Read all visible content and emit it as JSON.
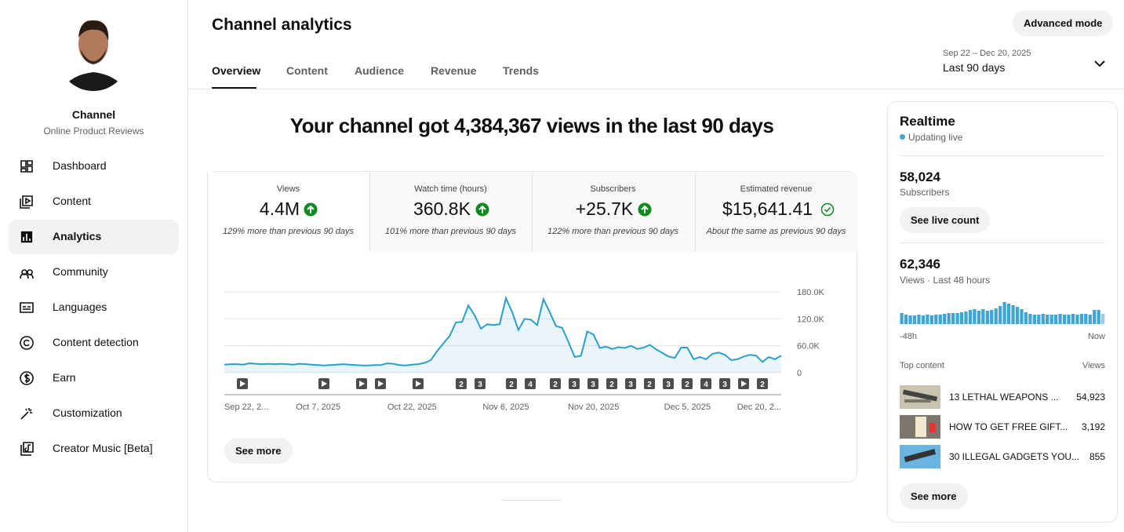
{
  "sidebar": {
    "channel_name": "Channel",
    "channel_subtitle": "Online Product Reviews",
    "nav": [
      "Dashboard",
      "Content",
      "Analytics",
      "Community",
      "Languages",
      "Content detection",
      "Earn",
      "Customization",
      "Creator Music [Beta]"
    ]
  },
  "header": {
    "title": "Channel analytics",
    "tabs": [
      "Overview",
      "Content",
      "Audience",
      "Revenue",
      "Trends"
    ],
    "advanced_button": "Advanced mode",
    "date_range": "Sep 22 – Dec 20, 2025",
    "period": "Last 90 days"
  },
  "headline": "Your channel got 4,384,367 views in the last 90 days",
  "metrics": [
    {
      "label": "Views",
      "value": "4.4M",
      "note": "129% more than previous 90 days"
    },
    {
      "label": "Watch time (hours)",
      "value": "360.8K",
      "note": "101% more than previous 90 days"
    },
    {
      "label": "Subscribers",
      "value": "+25.7K",
      "note": "122% more than previous 90 days"
    },
    {
      "label": "Estimated revenue",
      "value": "$15,641.41",
      "note": "About the same as previous 90 days"
    }
  ],
  "main_chart": {
    "type": "line",
    "color": "#2aa0c9",
    "grid": true,
    "ylim": [
      0,
      180000
    ],
    "yticks": [
      0,
      {
        "value": 60000,
        "label": "60.0K"
      },
      {
        "value": 120000,
        "label": "120.0K"
      },
      {
        "value": 180000,
        "label": "180.0K"
      }
    ],
    "categories": [
      "Sep 22, 2...",
      null,
      null,
      null,
      null,
      null,
      null,
      null,
      null,
      null,
      null,
      null,
      null,
      null,
      null,
      "Oct 7, 2025",
      null,
      null,
      null,
      null,
      null,
      null,
      null,
      null,
      null,
      null,
      null,
      null,
      null,
      null,
      "Oct 22, 2025",
      null,
      null,
      null,
      null,
      null,
      null,
      null,
      null,
      null,
      null,
      null,
      null,
      null,
      null,
      "Nov 6, 2025",
      null,
      null,
      null,
      null,
      null,
      null,
      null,
      null,
      null,
      null,
      null,
      null,
      null,
      "Nov 20, 2025",
      null,
      null,
      null,
      null,
      null,
      null,
      null,
      null,
      null,
      null,
      null,
      null,
      null,
      null,
      "Dec 5, 2025",
      null,
      null,
      null,
      null,
      null,
      null,
      null,
      null,
      null,
      null,
      null,
      null,
      null,
      null,
      "Dec 20, 2..."
    ],
    "values": [
      18000,
      19000,
      19000,
      18000,
      21000,
      20000,
      19000,
      20000,
      19000,
      20000,
      19000,
      18000,
      20000,
      19000,
      18000,
      17000,
      16000,
      17000,
      18000,
      19000,
      18000,
      17000,
      16000,
      16000,
      17000,
      17000,
      21000,
      20000,
      17000,
      16000,
      18000,
      19000,
      22000,
      28000,
      48000,
      65000,
      82000,
      112000,
      113000,
      150000,
      128000,
      98000,
      108000,
      106000,
      108000,
      166000,
      135000,
      95000,
      120000,
      118000,
      106000,
      164000,
      135000,
      104000,
      100000,
      68000,
      35000,
      38000,
      92000,
      85000,
      55000,
      58000,
      53000,
      57000,
      55000,
      60000,
      53000,
      56000,
      62000,
      52000,
      44000,
      36000,
      33000,
      56000,
      56000,
      30000,
      35000,
      30000,
      42000,
      45000,
      40000,
      28000,
      30000,
      36000,
      40000,
      38000,
      24000,
      35000,
      30000,
      38000
    ],
    "markers": [
      null,
      null,
      null,
      null,
      null,
      "2",
      "3",
      "2",
      "4",
      "2",
      "3",
      "3",
      "2",
      "3",
      "2",
      "3",
      "2",
      "4",
      "3",
      null,
      "2"
    ]
  },
  "see_more": "See more",
  "realtime": {
    "title": "Realtime",
    "status": "Updating live",
    "subscribers": "58,024",
    "subscribers_label": "Subscribers",
    "live_count_button": "See live count",
    "views": "62,346",
    "views_label": "Views · Last 48 hours",
    "chart": {
      "type": "bar",
      "color": "#3ea6d6",
      "values": [
        1260,
        1080,
        990,
        990,
        1080,
        990,
        1080,
        990,
        1080,
        1080,
        1170,
        1260,
        1260,
        1260,
        1350,
        1440,
        1620,
        1710,
        1530,
        1710,
        1530,
        1620,
        1800,
        2070,
        2520,
        2340,
        2160,
        1980,
        1710,
        1350,
        1170,
        1080,
        1080,
        1170,
        1080,
        1080,
        1080,
        1170,
        1080,
        1080,
        1170,
        1080,
        1170,
        1170,
        1080,
        1620,
        1620,
        1170
      ],
      "start_label": "-48h",
      "end_label": "Now"
    },
    "top_content_label": "Top content",
    "top_content_views_label": "Views",
    "top_content": [
      {
        "title": "13 LETHAL WEAPONS ...",
        "views": "54,923"
      },
      {
        "title": "HOW TO GET FREE GIFT...",
        "views": "3,192"
      },
      {
        "title": "30 ILLEGAL GADGETS YOU...",
        "views": "855"
      }
    ],
    "see_more": "See more"
  }
}
